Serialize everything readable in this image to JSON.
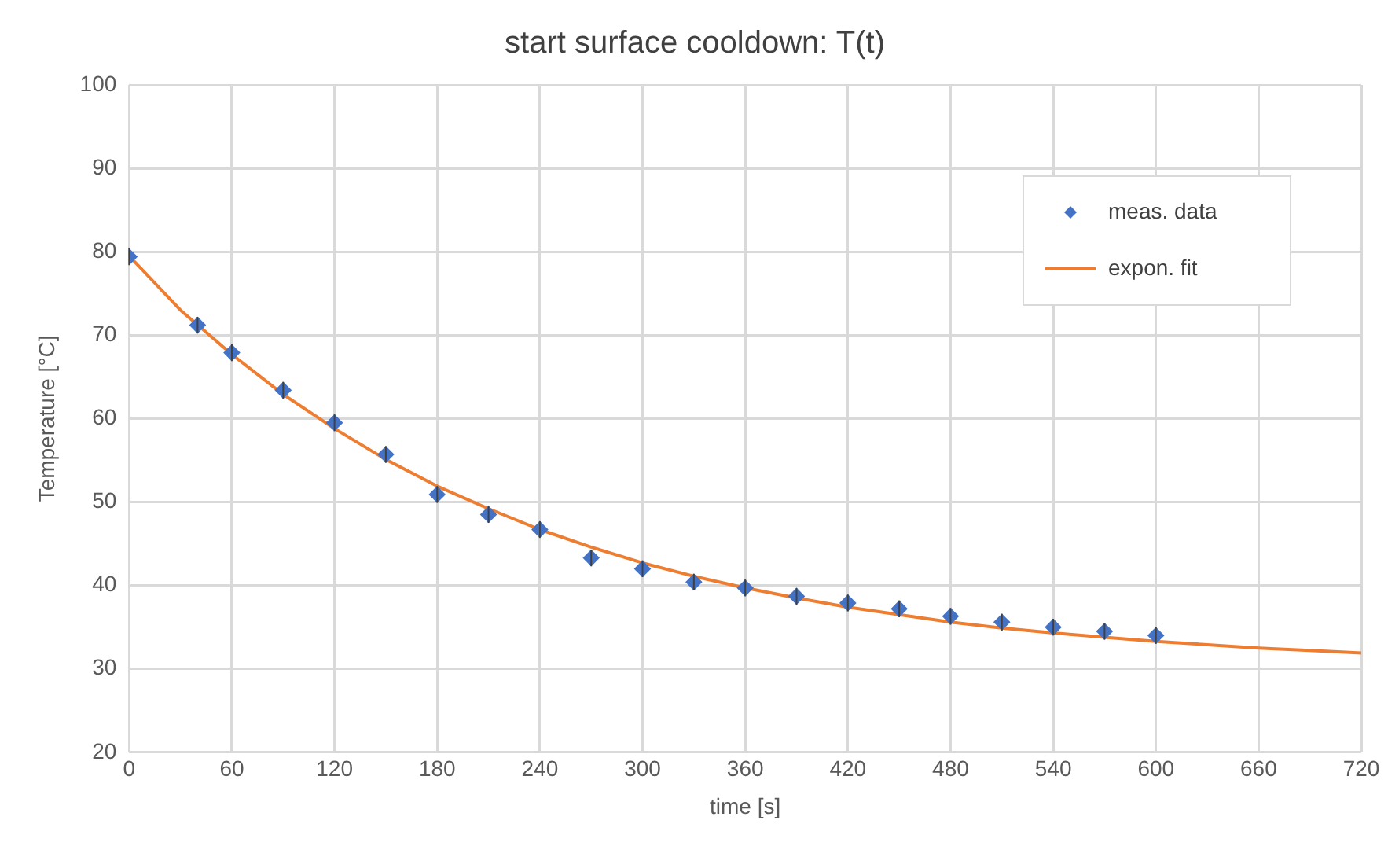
{
  "chart_data": {
    "type": "scatter",
    "title": "start surface cooldown: T(t)",
    "xlabel": "time [s]",
    "ylabel": "Temperature [°C]",
    "xlim": [
      0,
      720
    ],
    "xticks": [
      0,
      60,
      120,
      180,
      240,
      300,
      360,
      420,
      480,
      540,
      600,
      660,
      720
    ],
    "ylim": [
      20,
      100
    ],
    "yticks": [
      20,
      30,
      40,
      50,
      60,
      70,
      80,
      90,
      100
    ],
    "grid": true,
    "legend": "top right",
    "series": [
      {
        "name": "meas. data",
        "type": "scatter",
        "marker": "diamond",
        "color": "#4472c4",
        "x": [
          0,
          40,
          60,
          90,
          120,
          150,
          180,
          210,
          240,
          270,
          300,
          330,
          360,
          390,
          420,
          450,
          480,
          510,
          540,
          570,
          600
        ],
        "values": [
          79.4,
          71.2,
          67.9,
          63.4,
          59.5,
          55.7,
          50.9,
          48.5,
          46.7,
          43.3,
          42.0,
          40.4,
          39.7,
          38.7,
          37.9,
          37.2,
          36.3,
          35.6,
          35.0,
          34.5,
          34.0
        ],
        "errors": [
          1,
          1,
          1,
          1,
          1,
          1,
          1,
          1,
          1,
          1,
          1,
          1,
          1,
          1,
          1,
          1,
          1,
          1,
          1,
          1,
          1
        ]
      },
      {
        "name": "expon. fit",
        "type": "line",
        "marker": "none",
        "line_style": "solid",
        "color": "#ed7d31",
        "x": [
          0,
          30,
          60,
          90,
          120,
          150,
          180,
          210,
          240,
          270,
          300,
          330,
          360,
          390,
          420,
          450,
          480,
          510,
          540,
          570,
          600,
          630,
          660,
          690,
          720
        ],
        "values": [
          79.5,
          73.0,
          67.7,
          62.9,
          58.8,
          55.1,
          51.9,
          49.2,
          46.7,
          44.6,
          42.7,
          41.1,
          39.7,
          38.5,
          37.4,
          36.5,
          35.6,
          34.9,
          34.3,
          33.8,
          33.3,
          32.9,
          32.5,
          32.2,
          31.9
        ]
      }
    ]
  }
}
